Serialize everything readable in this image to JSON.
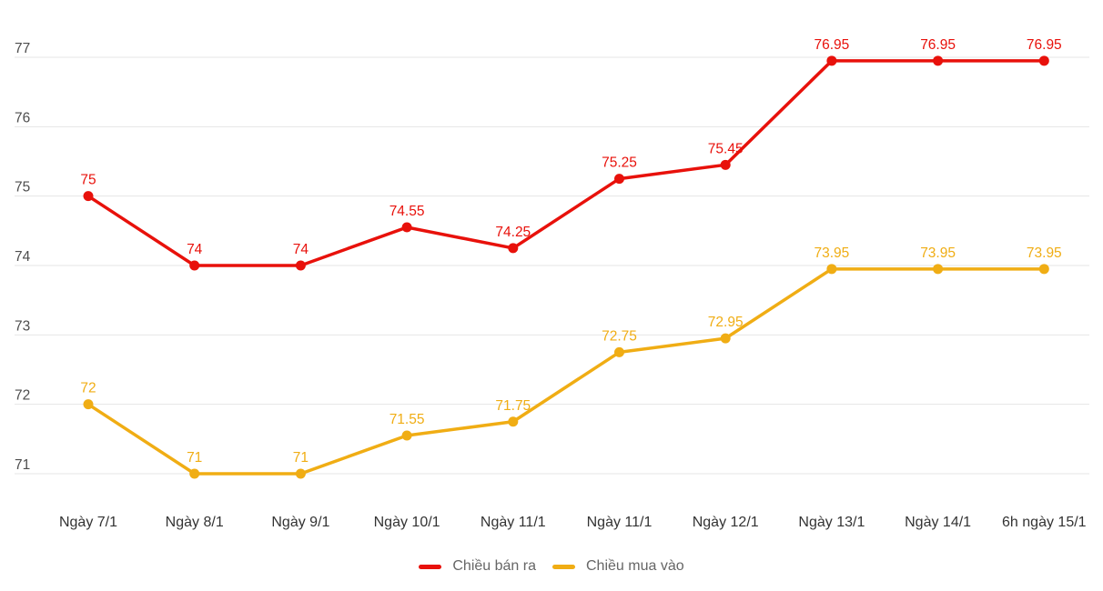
{
  "chart_data": {
    "type": "line",
    "title": "",
    "xlabel": "",
    "ylabel": "",
    "grid": true,
    "legend_position": "bottom-center",
    "categories": [
      "Ngày 7/1",
      "Ngày 8/1",
      "Ngày 9/1",
      "Ngày 10/1",
      "Ngày 11/1",
      "Ngày 11/1",
      "Ngày 12/1",
      "Ngày 13/1",
      "Ngày 14/1",
      "6h ngày 15/1"
    ],
    "yticks": [
      77,
      76,
      75,
      74,
      73,
      72,
      71
    ],
    "ylim": [
      71,
      77
    ],
    "series": [
      {
        "name": "Chiều bán ra",
        "color": "#e8110b",
        "values": [
          75,
          74,
          74,
          74.55,
          74.25,
          75.25,
          75.45,
          76.95,
          76.95,
          76.95
        ],
        "point_labels": [
          "75",
          "74",
          "74",
          "74.55",
          "74.25",
          "75.25",
          "75.45",
          "76.95",
          "76.95",
          "76.95"
        ]
      },
      {
        "name": "Chiều mua vào",
        "color": "#f0ad14",
        "values": [
          72,
          71,
          71,
          71.55,
          71.75,
          72.75,
          72.95,
          73.95,
          73.95,
          73.95
        ],
        "point_labels": [
          "72",
          "71",
          "71",
          "71.55",
          "71.75",
          "72.75",
          "72.95",
          "73.95",
          "73.95",
          "73.95"
        ]
      }
    ]
  },
  "colors": {
    "background": "#ffffff",
    "grid": "#e6e6e6",
    "y_axis_label": "#4d4d4d",
    "x_axis_label": "#333333",
    "legend_text": "#666666"
  },
  "legend": {
    "sell_label": "Chiều bán ra",
    "buy_label": "Chiều mua vào"
  }
}
